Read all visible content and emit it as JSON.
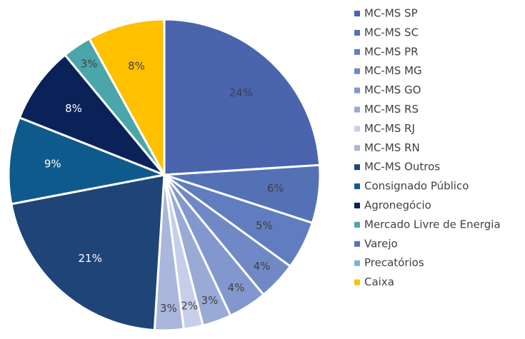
{
  "chart_data": {
    "type": "pie",
    "categories": [
      "MC-MS SP",
      "MC-MS SC",
      "MC-MS PR",
      "MC-MS MG",
      "MC-MS GO",
      "MC-MS RS",
      "MC-MS RJ",
      "MC-MS RN",
      "MC-MS Outros",
      "Consignado Público",
      "Agronegócio",
      "Mercado Livre de Energia",
      "Varejo",
      "Precatórios",
      "Caixa"
    ],
    "values": [
      24,
      6,
      5,
      4,
      4,
      3,
      2,
      3,
      21,
      9,
      8,
      3,
      0,
      0,
      8
    ],
    "value_labels": [
      "24%",
      "6%",
      "5%",
      "4%",
      "4%",
      "3%",
      "2%",
      "3%",
      "21%",
      "9%",
      "8%",
      "3%",
      null,
      null,
      "8%"
    ],
    "colors": [
      "#4a64ae",
      "#5571b6",
      "#607dbf",
      "#7089c6",
      "#8297cd",
      "#9aaad6",
      "#c6cee9",
      "#aab6dc",
      "#1f4478",
      "#0f5a8c",
      "#0b2259",
      "#4aa6ab",
      "#5a74b8",
      "#7ab4d8",
      "#ffc000"
    ],
    "legend": "right"
  }
}
